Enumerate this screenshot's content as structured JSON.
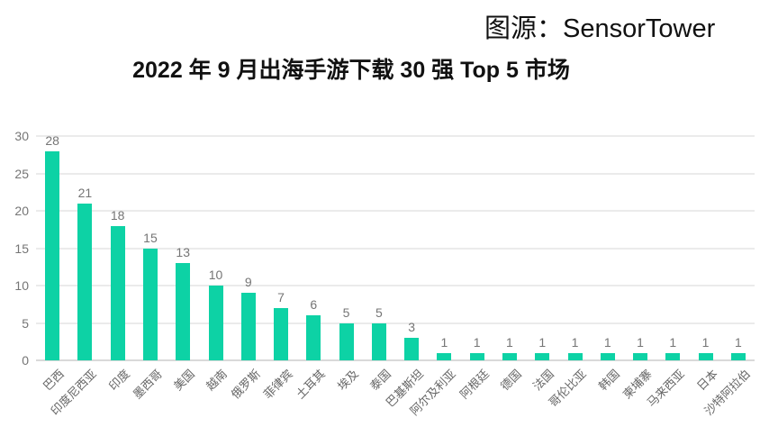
{
  "source_label": "图源：SensorTower",
  "chart_data": {
    "type": "bar",
    "title": "2022 年 9 月出海手游下载 30 强 Top 5 市场",
    "categories": [
      "巴西",
      "印度尼西亚",
      "印度",
      "墨西哥",
      "美国",
      "越南",
      "俄罗斯",
      "菲律宾",
      "土耳其",
      "埃及",
      "泰国",
      "巴基斯坦",
      "阿尔及利亚",
      "阿根廷",
      "德国",
      "法国",
      "哥伦比亚",
      "韩国",
      "柬埔寨",
      "马来西亚",
      "日本",
      "沙特阿拉伯"
    ],
    "values": [
      28,
      21,
      18,
      15,
      13,
      10,
      9,
      7,
      6,
      5,
      5,
      3,
      1,
      1,
      1,
      1,
      1,
      1,
      1,
      1,
      1,
      1
    ],
    "xlabel": "",
    "ylabel": "",
    "ylim": [
      0,
      30
    ],
    "yticks": [
      0,
      5,
      10,
      15,
      20,
      25,
      30
    ],
    "grid": true,
    "legend_position": "none",
    "bar_value_labels": true,
    "x_tick_rotation": 45
  },
  "colors": {
    "bar": "#0dd2a5",
    "gridline": "#ebebeb",
    "axis_line": "#d9d9d9",
    "tick_text": "#757575",
    "category_text": "#666666",
    "title_text": "#111111",
    "background": "#ffffff"
  }
}
